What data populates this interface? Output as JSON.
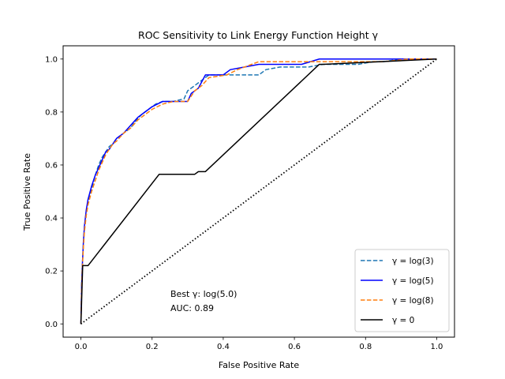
{
  "chart_data": {
    "type": "line",
    "title": "ROC Sensitivity to Link Energy Function Height γ",
    "xlabel": "False Positive Rate",
    "ylabel": "True Positive Rate",
    "xlim": [
      -0.05,
      1.05
    ],
    "ylim": [
      -0.05,
      1.05
    ],
    "xticks": [
      0.0,
      0.2,
      0.4,
      0.6,
      0.8,
      1.0
    ],
    "yticks": [
      0.0,
      0.2,
      0.4,
      0.6,
      0.8,
      1.0
    ],
    "xtick_labels": [
      "0.0",
      "0.2",
      "0.4",
      "0.6",
      "0.8",
      "1.0"
    ],
    "ytick_labels": [
      "0.0",
      "0.2",
      "0.4",
      "0.6",
      "0.8",
      "1.0"
    ],
    "legend_position": "lower-right",
    "annotation": {
      "line1": "Best γ: log(5.0)",
      "line2": "AUC: 0.89",
      "x": 0.25,
      "y": 0.08
    },
    "series": [
      {
        "name": "γ = log(3)",
        "legend_label": "γ = log(3)",
        "color": "#1f77b4",
        "style": "dashed",
        "x": [
          0.0,
          0.002,
          0.004,
          0.007,
          0.01,
          0.015,
          0.02,
          0.03,
          0.04,
          0.05,
          0.06,
          0.07,
          0.08,
          0.09,
          0.1,
          0.12,
          0.14,
          0.15,
          0.17,
          0.19,
          0.21,
          0.23,
          0.26,
          0.29,
          0.3,
          0.32,
          0.34,
          0.36,
          0.42,
          0.46,
          0.5,
          0.52,
          0.56,
          0.6,
          0.64,
          0.68,
          0.72,
          0.78,
          0.82,
          0.85,
          0.9,
          0.95,
          1.0
        ],
        "y": [
          0.0,
          0.15,
          0.22,
          0.3,
          0.36,
          0.42,
          0.46,
          0.51,
          0.56,
          0.6,
          0.63,
          0.65,
          0.67,
          0.68,
          0.7,
          0.72,
          0.74,
          0.76,
          0.79,
          0.81,
          0.83,
          0.84,
          0.84,
          0.85,
          0.88,
          0.9,
          0.92,
          0.94,
          0.94,
          0.94,
          0.94,
          0.96,
          0.97,
          0.97,
          0.97,
          0.98,
          0.98,
          0.98,
          0.99,
          0.99,
          1.0,
          1.0,
          1.0
        ]
      },
      {
        "name": "γ = log(5)",
        "legend_label": "γ = log(5)",
        "color": "#0000ff",
        "style": "solid",
        "x": [
          0.0,
          0.002,
          0.004,
          0.007,
          0.01,
          0.015,
          0.02,
          0.03,
          0.04,
          0.05,
          0.06,
          0.07,
          0.08,
          0.09,
          0.1,
          0.12,
          0.14,
          0.16,
          0.18,
          0.2,
          0.23,
          0.26,
          0.3,
          0.31,
          0.33,
          0.35,
          0.4,
          0.42,
          0.46,
          0.5,
          0.56,
          0.62,
          0.67,
          0.7,
          0.8,
          0.9,
          1.0
        ],
        "y": [
          0.0,
          0.14,
          0.22,
          0.31,
          0.37,
          0.43,
          0.47,
          0.52,
          0.56,
          0.59,
          0.62,
          0.65,
          0.66,
          0.68,
          0.7,
          0.72,
          0.75,
          0.78,
          0.8,
          0.82,
          0.84,
          0.84,
          0.84,
          0.87,
          0.89,
          0.94,
          0.94,
          0.96,
          0.97,
          0.98,
          0.98,
          0.98,
          1.0,
          1.0,
          1.0,
          1.0,
          1.0
        ]
      },
      {
        "name": "γ = log(8)",
        "legend_label": "γ = log(8)",
        "color": "#ff7f0e",
        "style": "dashed",
        "x": [
          0.0,
          0.002,
          0.004,
          0.007,
          0.01,
          0.015,
          0.02,
          0.03,
          0.04,
          0.05,
          0.06,
          0.07,
          0.08,
          0.09,
          0.1,
          0.12,
          0.14,
          0.16,
          0.18,
          0.2,
          0.23,
          0.26,
          0.3,
          0.31,
          0.32,
          0.34,
          0.36,
          0.41,
          0.44,
          0.5,
          0.56,
          0.62,
          0.68,
          0.75,
          0.85,
          0.92,
          1.0
        ],
        "y": [
          0.0,
          0.13,
          0.21,
          0.29,
          0.35,
          0.41,
          0.45,
          0.5,
          0.54,
          0.58,
          0.61,
          0.64,
          0.66,
          0.68,
          0.69,
          0.72,
          0.74,
          0.77,
          0.79,
          0.81,
          0.83,
          0.84,
          0.84,
          0.86,
          0.88,
          0.9,
          0.93,
          0.94,
          0.96,
          0.99,
          0.99,
          0.99,
          0.99,
          0.99,
          0.99,
          1.0,
          1.0
        ]
      },
      {
        "name": "γ = 0",
        "legend_label": "γ = 0",
        "color": "#000000",
        "style": "solid",
        "x": [
          0.0,
          0.005,
          0.01,
          0.02,
          0.22,
          0.32,
          0.33,
          0.35,
          0.67,
          0.68,
          1.0
        ],
        "y": [
          0.0,
          0.22,
          0.22,
          0.22,
          0.565,
          0.565,
          0.575,
          0.575,
          0.98,
          0.98,
          1.0
        ]
      },
      {
        "name": "chance",
        "legend_label": "",
        "color": "#000000",
        "style": "dotted",
        "x": [
          0.0,
          1.0
        ],
        "y": [
          0.0,
          1.0
        ]
      }
    ]
  }
}
